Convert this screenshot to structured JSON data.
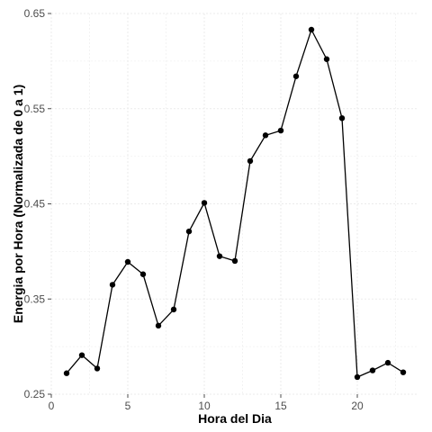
{
  "chart_data": {
    "type": "line",
    "title": "",
    "xlabel": "Hora del Dia",
    "ylabel": "Energia por Hora (Normalizada de 0 a 1)",
    "xlim": [
      0,
      24
    ],
    "ylim": [
      0.25,
      0.65
    ],
    "xticks": [
      0,
      5,
      10,
      15,
      20
    ],
    "xtick_labels": [
      "0",
      "5",
      "10",
      "15",
      "20"
    ],
    "yticks": [
      0.25,
      0.35,
      0.45,
      0.55,
      0.65
    ],
    "ytick_labels": [
      "0.25",
      "0.35",
      "0.45",
      "0.55",
      "0.65"
    ],
    "grid": true,
    "colors": {
      "line": "#000000",
      "grid": "#ebebeb",
      "tick": "#4d4d4d"
    },
    "series": [
      {
        "x": [
          1,
          2,
          3,
          4,
          5,
          6,
          7,
          8,
          9,
          10,
          11,
          12,
          13,
          14,
          15,
          16,
          17,
          18,
          19,
          20,
          21,
          22,
          23
        ],
        "values": [
          0.272,
          0.291,
          0.277,
          0.365,
          0.389,
          0.376,
          0.322,
          0.339,
          0.421,
          0.451,
          0.395,
          0.39,
          0.495,
          0.522,
          0.527,
          0.584,
          0.633,
          0.602,
          0.54,
          0.268,
          0.275,
          0.283,
          0.273
        ]
      }
    ]
  }
}
